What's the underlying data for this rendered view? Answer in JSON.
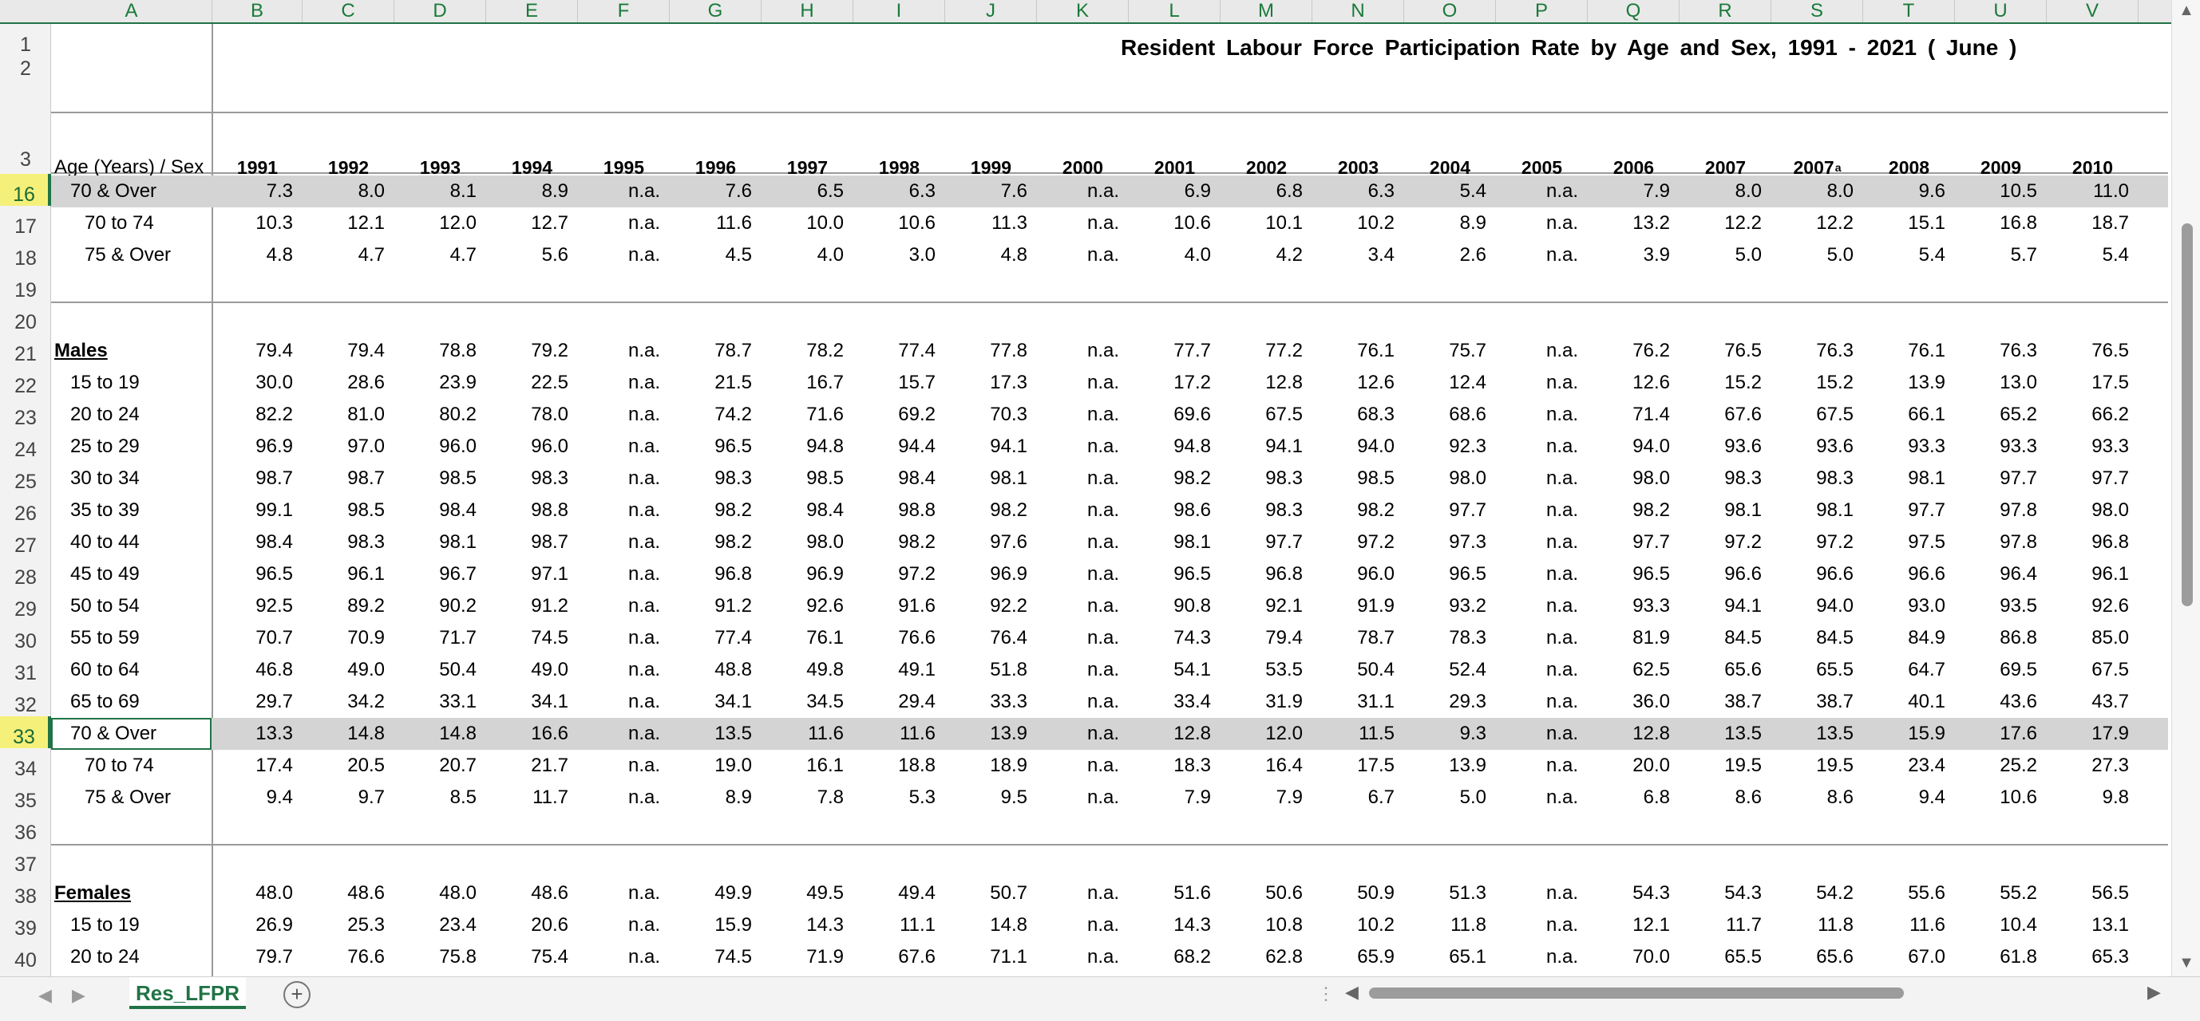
{
  "sheet": {
    "title": "Resident  Labour  Force  Participation  Rate by  Age  and  Sex, 1991 - 2021  ( June )",
    "header_label": "Age (Years) / Sex",
    "columns": [
      "A",
      "B",
      "C",
      "D",
      "E",
      "F",
      "G",
      "H",
      "I",
      "J",
      "K",
      "L",
      "M",
      "N",
      "O",
      "P",
      "Q",
      "R",
      "S",
      "T",
      "U",
      "V"
    ],
    "years": [
      "1991",
      "1992",
      "1993",
      "1994",
      "1995",
      "1996",
      "1997",
      "1998",
      "1999",
      "2000",
      "2001",
      "2002",
      "2003",
      "2004",
      "2005",
      "2006",
      "2007",
      "2007",
      "2008",
      "2009",
      "2010"
    ],
    "year_superscripts": [
      "",
      "",
      "",
      "",
      "",
      "",
      "",
      "",
      "",
      "",
      "",
      "",
      "",
      "",
      "",
      "",
      "",
      "a",
      "",
      "",
      ""
    ],
    "row_numbers": [
      "1",
      "2",
      "3",
      "16",
      "17",
      "18",
      "19",
      "20",
      "21",
      "22",
      "23",
      "24",
      "25",
      "26",
      "27",
      "28",
      "29",
      "30",
      "31",
      "32",
      "33",
      "34",
      "35",
      "36",
      "37",
      "38",
      "39",
      "40"
    ],
    "data_rows": [
      {
        "row": "16",
        "label": "70 & Over",
        "values": [
          "7.3",
          "8.0",
          "8.1",
          "8.9",
          "n.a.",
          "7.6",
          "6.5",
          "6.3",
          "7.6",
          "n.a.",
          "6.9",
          "6.8",
          "6.3",
          "5.4",
          "n.a.",
          "7.9",
          "8.0",
          "8.0",
          "9.6",
          "10.5",
          "11.0"
        ]
      },
      {
        "row": "17",
        "label": "70 to 74",
        "values": [
          "10.3",
          "12.1",
          "12.0",
          "12.7",
          "n.a.",
          "11.6",
          "10.0",
          "10.6",
          "11.3",
          "n.a.",
          "10.6",
          "10.1",
          "10.2",
          "8.9",
          "n.a.",
          "13.2",
          "12.2",
          "12.2",
          "15.1",
          "16.8",
          "18.7"
        ]
      },
      {
        "row": "18",
        "label": "75 & Over",
        "values": [
          "4.8",
          "4.7",
          "4.7",
          "5.6",
          "n.a.",
          "4.5",
          "4.0",
          "3.0",
          "4.8",
          "n.a.",
          "4.0",
          "4.2",
          "3.4",
          "2.6",
          "n.a.",
          "3.9",
          "5.0",
          "5.0",
          "5.4",
          "5.7",
          "5.4"
        ]
      },
      {
        "row": "21",
        "label": "Males",
        "values": [
          "79.4",
          "79.4",
          "78.8",
          "79.2",
          "n.a.",
          "78.7",
          "78.2",
          "77.4",
          "77.8",
          "n.a.",
          "77.7",
          "77.2",
          "76.1",
          "75.7",
          "n.a.",
          "76.2",
          "76.5",
          "76.3",
          "76.1",
          "76.3",
          "76.5"
        ]
      },
      {
        "row": "22",
        "label": "15 to 19",
        "values": [
          "30.0",
          "28.6",
          "23.9",
          "22.5",
          "n.a.",
          "21.5",
          "16.7",
          "15.7",
          "17.3",
          "n.a.",
          "17.2",
          "12.8",
          "12.6",
          "12.4",
          "n.a.",
          "12.6",
          "15.2",
          "15.2",
          "13.9",
          "13.0",
          "17.5"
        ]
      },
      {
        "row": "23",
        "label": "20 to 24",
        "values": [
          "82.2",
          "81.0",
          "80.2",
          "78.0",
          "n.a.",
          "74.2",
          "71.6",
          "69.2",
          "70.3",
          "n.a.",
          "69.6",
          "67.5",
          "68.3",
          "68.6",
          "n.a.",
          "71.4",
          "67.6",
          "67.5",
          "66.1",
          "65.2",
          "66.2"
        ]
      },
      {
        "row": "24",
        "label": "25 to 29",
        "values": [
          "96.9",
          "97.0",
          "96.0",
          "96.0",
          "n.a.",
          "96.5",
          "94.8",
          "94.4",
          "94.1",
          "n.a.",
          "94.8",
          "94.1",
          "94.0",
          "92.3",
          "n.a.",
          "94.0",
          "93.6",
          "93.6",
          "93.3",
          "93.3",
          "93.3"
        ]
      },
      {
        "row": "25",
        "label": "30 to 34",
        "values": [
          "98.7",
          "98.7",
          "98.5",
          "98.3",
          "n.a.",
          "98.3",
          "98.5",
          "98.4",
          "98.1",
          "n.a.",
          "98.2",
          "98.3",
          "98.5",
          "98.0",
          "n.a.",
          "98.0",
          "98.3",
          "98.3",
          "98.1",
          "97.7",
          "97.7"
        ]
      },
      {
        "row": "26",
        "label": "35 to 39",
        "values": [
          "99.1",
          "98.5",
          "98.4",
          "98.8",
          "n.a.",
          "98.2",
          "98.4",
          "98.8",
          "98.2",
          "n.a.",
          "98.6",
          "98.3",
          "98.2",
          "97.7",
          "n.a.",
          "98.2",
          "98.1",
          "98.1",
          "97.7",
          "97.8",
          "98.0"
        ]
      },
      {
        "row": "27",
        "label": "40 to 44",
        "values": [
          "98.4",
          "98.3",
          "98.1",
          "98.7",
          "n.a.",
          "98.2",
          "98.0",
          "98.2",
          "97.6",
          "n.a.",
          "98.1",
          "97.7",
          "97.2",
          "97.3",
          "n.a.",
          "97.7",
          "97.2",
          "97.2",
          "97.5",
          "97.8",
          "96.8"
        ]
      },
      {
        "row": "28",
        "label": "45 to 49",
        "values": [
          "96.5",
          "96.1",
          "96.7",
          "97.1",
          "n.a.",
          "96.8",
          "96.9",
          "97.2",
          "96.9",
          "n.a.",
          "96.5",
          "96.8",
          "96.0",
          "96.5",
          "n.a.",
          "96.5",
          "96.6",
          "96.6",
          "96.6",
          "96.4",
          "96.1"
        ]
      },
      {
        "row": "29",
        "label": "50 to 54",
        "values": [
          "92.5",
          "89.2",
          "90.2",
          "91.2",
          "n.a.",
          "91.2",
          "92.6",
          "91.6",
          "92.2",
          "n.a.",
          "90.8",
          "92.1",
          "91.9",
          "93.2",
          "n.a.",
          "93.3",
          "94.1",
          "94.0",
          "93.0",
          "93.5",
          "92.6"
        ]
      },
      {
        "row": "30",
        "label": "55 to 59",
        "values": [
          "70.7",
          "70.9",
          "71.7",
          "74.5",
          "n.a.",
          "77.4",
          "76.1",
          "76.6",
          "76.4",
          "n.a.",
          "74.3",
          "79.4",
          "78.7",
          "78.3",
          "n.a.",
          "81.9",
          "84.5",
          "84.5",
          "84.9",
          "86.8",
          "85.0"
        ]
      },
      {
        "row": "31",
        "label": "60 to 64",
        "values": [
          "46.8",
          "49.0",
          "50.4",
          "49.0",
          "n.a.",
          "48.8",
          "49.8",
          "49.1",
          "51.8",
          "n.a.",
          "54.1",
          "53.5",
          "50.4",
          "52.4",
          "n.a.",
          "62.5",
          "65.6",
          "65.5",
          "64.7",
          "69.5",
          "67.5"
        ]
      },
      {
        "row": "32",
        "label": "65 to 69",
        "values": [
          "29.7",
          "34.2",
          "33.1",
          "34.1",
          "n.a.",
          "34.1",
          "34.5",
          "29.4",
          "33.3",
          "n.a.",
          "33.4",
          "31.9",
          "31.1",
          "29.3",
          "n.a.",
          "36.0",
          "38.7",
          "38.7",
          "40.1",
          "43.6",
          "43.7"
        ]
      },
      {
        "row": "33",
        "label": "70 & Over",
        "values": [
          "13.3",
          "14.8",
          "14.8",
          "16.6",
          "n.a.",
          "13.5",
          "11.6",
          "11.6",
          "13.9",
          "n.a.",
          "12.8",
          "12.0",
          "11.5",
          "9.3",
          "n.a.",
          "12.8",
          "13.5",
          "13.5",
          "15.9",
          "17.6",
          "17.9"
        ]
      },
      {
        "row": "34",
        "label": "70 to 74",
        "values": [
          "17.4",
          "20.5",
          "20.7",
          "21.7",
          "n.a.",
          "19.0",
          "16.1",
          "18.8",
          "18.9",
          "n.a.",
          "18.3",
          "16.4",
          "17.5",
          "13.9",
          "n.a.",
          "20.0",
          "19.5",
          "19.5",
          "23.4",
          "25.2",
          "27.3"
        ]
      },
      {
        "row": "35",
        "label": "75 & Over",
        "values": [
          "9.4",
          "9.7",
          "8.5",
          "11.7",
          "n.a.",
          "8.9",
          "7.8",
          "5.3",
          "9.5",
          "n.a.",
          "7.9",
          "7.9",
          "6.7",
          "5.0",
          "n.a.",
          "6.8",
          "8.6",
          "8.6",
          "9.4",
          "10.6",
          "9.8"
        ]
      },
      {
        "row": "38",
        "label": "Females",
        "values": [
          "48.0",
          "48.6",
          "48.0",
          "48.6",
          "n.a.",
          "49.9",
          "49.5",
          "49.4",
          "50.7",
          "n.a.",
          "51.6",
          "50.6",
          "50.9",
          "51.3",
          "n.a.",
          "54.3",
          "54.3",
          "54.2",
          "55.6",
          "55.2",
          "56.5"
        ]
      },
      {
        "row": "39",
        "label": "15 to 19",
        "values": [
          "26.9",
          "25.3",
          "23.4",
          "20.6",
          "n.a.",
          "15.9",
          "14.3",
          "11.1",
          "14.8",
          "n.a.",
          "14.3",
          "10.8",
          "10.2",
          "11.8",
          "n.a.",
          "12.1",
          "11.7",
          "11.8",
          "11.6",
          "10.4",
          "13.1"
        ]
      },
      {
        "row": "40",
        "label": "20 to 24",
        "values": [
          "79.7",
          "76.6",
          "75.8",
          "75.4",
          "n.a.",
          "74.5",
          "71.9",
          "67.6",
          "71.1",
          "n.a.",
          "68.2",
          "62.8",
          "65.9",
          "65.1",
          "n.a.",
          "70.0",
          "65.5",
          "65.6",
          "67.0",
          "61.8",
          "65.3"
        ]
      }
    ],
    "tab_name": "Res_LFPR"
  }
}
